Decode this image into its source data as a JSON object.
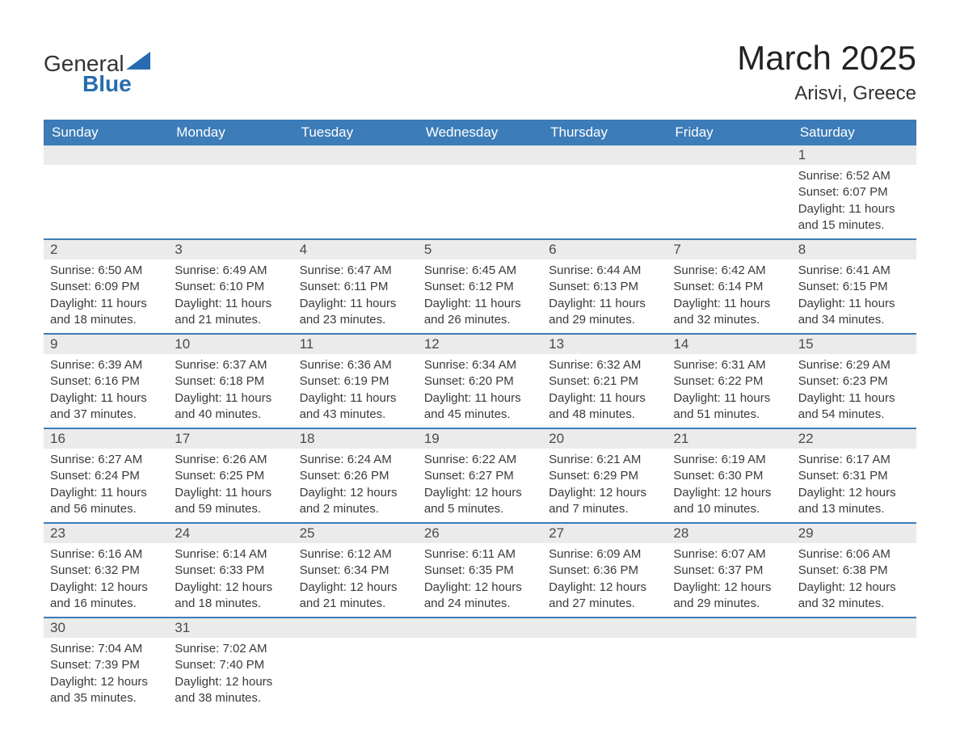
{
  "logo": {
    "line1": "General",
    "line2": "Blue"
  },
  "title": "March 2025",
  "location": "Arisvi, Greece",
  "colors": {
    "header_bg": "#3c7cb8",
    "header_text": "#ffffff",
    "daynum_bg": "#ebebeb",
    "text": "#3a3a3a",
    "border": "#3c7cb8",
    "logo_blue": "#276bb0",
    "page_bg": "#ffffff"
  },
  "fonts": {
    "title_size_pt": 42,
    "location_size_pt": 24,
    "weekday_size_pt": 17,
    "daynum_size_pt": 17,
    "body_size_pt": 15,
    "family": "Arial"
  },
  "weekdays": [
    "Sunday",
    "Monday",
    "Tuesday",
    "Wednesday",
    "Thursday",
    "Friday",
    "Saturday"
  ],
  "weeks": [
    [
      {
        "n": "",
        "sr": "",
        "ss": "",
        "dl": ""
      },
      {
        "n": "",
        "sr": "",
        "ss": "",
        "dl": ""
      },
      {
        "n": "",
        "sr": "",
        "ss": "",
        "dl": ""
      },
      {
        "n": "",
        "sr": "",
        "ss": "",
        "dl": ""
      },
      {
        "n": "",
        "sr": "",
        "ss": "",
        "dl": ""
      },
      {
        "n": "",
        "sr": "",
        "ss": "",
        "dl": ""
      },
      {
        "n": "1",
        "sr": "Sunrise: 6:52 AM",
        "ss": "Sunset: 6:07 PM",
        "dl": "Daylight: 11 hours and 15 minutes."
      }
    ],
    [
      {
        "n": "2",
        "sr": "Sunrise: 6:50 AM",
        "ss": "Sunset: 6:09 PM",
        "dl": "Daylight: 11 hours and 18 minutes."
      },
      {
        "n": "3",
        "sr": "Sunrise: 6:49 AM",
        "ss": "Sunset: 6:10 PM",
        "dl": "Daylight: 11 hours and 21 minutes."
      },
      {
        "n": "4",
        "sr": "Sunrise: 6:47 AM",
        "ss": "Sunset: 6:11 PM",
        "dl": "Daylight: 11 hours and 23 minutes."
      },
      {
        "n": "5",
        "sr": "Sunrise: 6:45 AM",
        "ss": "Sunset: 6:12 PM",
        "dl": "Daylight: 11 hours and 26 minutes."
      },
      {
        "n": "6",
        "sr": "Sunrise: 6:44 AM",
        "ss": "Sunset: 6:13 PM",
        "dl": "Daylight: 11 hours and 29 minutes."
      },
      {
        "n": "7",
        "sr": "Sunrise: 6:42 AM",
        "ss": "Sunset: 6:14 PM",
        "dl": "Daylight: 11 hours and 32 minutes."
      },
      {
        "n": "8",
        "sr": "Sunrise: 6:41 AM",
        "ss": "Sunset: 6:15 PM",
        "dl": "Daylight: 11 hours and 34 minutes."
      }
    ],
    [
      {
        "n": "9",
        "sr": "Sunrise: 6:39 AM",
        "ss": "Sunset: 6:16 PM",
        "dl": "Daylight: 11 hours and 37 minutes."
      },
      {
        "n": "10",
        "sr": "Sunrise: 6:37 AM",
        "ss": "Sunset: 6:18 PM",
        "dl": "Daylight: 11 hours and 40 minutes."
      },
      {
        "n": "11",
        "sr": "Sunrise: 6:36 AM",
        "ss": "Sunset: 6:19 PM",
        "dl": "Daylight: 11 hours and 43 minutes."
      },
      {
        "n": "12",
        "sr": "Sunrise: 6:34 AM",
        "ss": "Sunset: 6:20 PM",
        "dl": "Daylight: 11 hours and 45 minutes."
      },
      {
        "n": "13",
        "sr": "Sunrise: 6:32 AM",
        "ss": "Sunset: 6:21 PM",
        "dl": "Daylight: 11 hours and 48 minutes."
      },
      {
        "n": "14",
        "sr": "Sunrise: 6:31 AM",
        "ss": "Sunset: 6:22 PM",
        "dl": "Daylight: 11 hours and 51 minutes."
      },
      {
        "n": "15",
        "sr": "Sunrise: 6:29 AM",
        "ss": "Sunset: 6:23 PM",
        "dl": "Daylight: 11 hours and 54 minutes."
      }
    ],
    [
      {
        "n": "16",
        "sr": "Sunrise: 6:27 AM",
        "ss": "Sunset: 6:24 PM",
        "dl": "Daylight: 11 hours and 56 minutes."
      },
      {
        "n": "17",
        "sr": "Sunrise: 6:26 AM",
        "ss": "Sunset: 6:25 PM",
        "dl": "Daylight: 11 hours and 59 minutes."
      },
      {
        "n": "18",
        "sr": "Sunrise: 6:24 AM",
        "ss": "Sunset: 6:26 PM",
        "dl": "Daylight: 12 hours and 2 minutes."
      },
      {
        "n": "19",
        "sr": "Sunrise: 6:22 AM",
        "ss": "Sunset: 6:27 PM",
        "dl": "Daylight: 12 hours and 5 minutes."
      },
      {
        "n": "20",
        "sr": "Sunrise: 6:21 AM",
        "ss": "Sunset: 6:29 PM",
        "dl": "Daylight: 12 hours and 7 minutes."
      },
      {
        "n": "21",
        "sr": "Sunrise: 6:19 AM",
        "ss": "Sunset: 6:30 PM",
        "dl": "Daylight: 12 hours and 10 minutes."
      },
      {
        "n": "22",
        "sr": "Sunrise: 6:17 AM",
        "ss": "Sunset: 6:31 PM",
        "dl": "Daylight: 12 hours and 13 minutes."
      }
    ],
    [
      {
        "n": "23",
        "sr": "Sunrise: 6:16 AM",
        "ss": "Sunset: 6:32 PM",
        "dl": "Daylight: 12 hours and 16 minutes."
      },
      {
        "n": "24",
        "sr": "Sunrise: 6:14 AM",
        "ss": "Sunset: 6:33 PM",
        "dl": "Daylight: 12 hours and 18 minutes."
      },
      {
        "n": "25",
        "sr": "Sunrise: 6:12 AM",
        "ss": "Sunset: 6:34 PM",
        "dl": "Daylight: 12 hours and 21 minutes."
      },
      {
        "n": "26",
        "sr": "Sunrise: 6:11 AM",
        "ss": "Sunset: 6:35 PM",
        "dl": "Daylight: 12 hours and 24 minutes."
      },
      {
        "n": "27",
        "sr": "Sunrise: 6:09 AM",
        "ss": "Sunset: 6:36 PM",
        "dl": "Daylight: 12 hours and 27 minutes."
      },
      {
        "n": "28",
        "sr": "Sunrise: 6:07 AM",
        "ss": "Sunset: 6:37 PM",
        "dl": "Daylight: 12 hours and 29 minutes."
      },
      {
        "n": "29",
        "sr": "Sunrise: 6:06 AM",
        "ss": "Sunset: 6:38 PM",
        "dl": "Daylight: 12 hours and 32 minutes."
      }
    ],
    [
      {
        "n": "30",
        "sr": "Sunrise: 7:04 AM",
        "ss": "Sunset: 7:39 PM",
        "dl": "Daylight: 12 hours and 35 minutes."
      },
      {
        "n": "31",
        "sr": "Sunrise: 7:02 AM",
        "ss": "Sunset: 7:40 PM",
        "dl": "Daylight: 12 hours and 38 minutes."
      },
      {
        "n": "",
        "sr": "",
        "ss": "",
        "dl": ""
      },
      {
        "n": "",
        "sr": "",
        "ss": "",
        "dl": ""
      },
      {
        "n": "",
        "sr": "",
        "ss": "",
        "dl": ""
      },
      {
        "n": "",
        "sr": "",
        "ss": "",
        "dl": ""
      },
      {
        "n": "",
        "sr": "",
        "ss": "",
        "dl": ""
      }
    ]
  ]
}
